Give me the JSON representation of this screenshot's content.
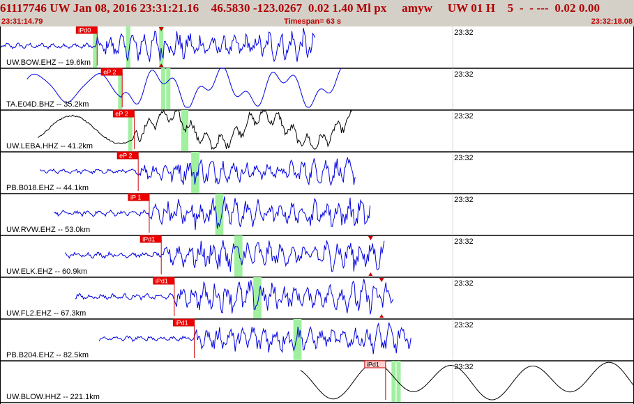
{
  "header": {
    "title": "61117746 UW Jan 08, 2016 23:31:21.16    46.5830 -123.0267  0.02 1.40 Ml px     amyw     UW 01 H    5  -  - ---  0.02 0.00",
    "start_time": "23:31:14.79",
    "timespan": "Timespan=  63 s",
    "end_time": "23:32:18.08"
  },
  "minute_mark": "23:32",
  "colors": {
    "header_bg": "#d4d0c8",
    "header_text": "#b00000",
    "trace_blue": "#0000e0",
    "trace_black": "#000000",
    "pick_box": "#ee0000",
    "pick_box_light": "#ffd0d0",
    "pick_line": "#cc0000",
    "window_green": "#a0f0a0"
  },
  "traces": [
    {
      "label": "UW.BOW.EHZ -- 19.6km",
      "color": "blue",
      "phase": "iPd0",
      "pick_sec": 9.7,
      "window_sec": [
        9.5,
        12.8,
        16.1
      ],
      "trace_sec": [
        0.0,
        31.5
      ],
      "amp": 22,
      "markers_sec": [
        16.1
      ],
      "style": "eq"
    },
    {
      "label": "TA.E04D.BHZ -- 35.2km",
      "color": "blue",
      "phase": "eP 2",
      "pick_sec": 12.2,
      "window_sec": [
        12.0,
        16.8,
        16.3
      ],
      "trace_sec": [
        2.7,
        34.1
      ],
      "amp": 24,
      "markers_sec": [],
      "style": "lp"
    },
    {
      "label": "UW.LEBA.HHZ -- 41.2km",
      "color": "black",
      "phase": "eP 2",
      "pick_sec": 13.4,
      "window_sec": [
        13.0,
        18.6,
        18.3
      ],
      "trace_sec": [
        3.8,
        35.2
      ],
      "amp": 22,
      "markers_sec": [],
      "style": "lpeq"
    },
    {
      "label": "PB.B018.EHZ -- 44.1km",
      "color": "blue",
      "phase": "eP 2",
      "pick_sec": 13.8,
      "window_sec": [
        19.3,
        19.7
      ],
      "trace_sec": [
        4.0,
        35.6
      ],
      "amp": 18,
      "markers_sec": [],
      "style": "eq"
    },
    {
      "label": "UW.RVW.EHZ -- 53.0km",
      "color": "blue",
      "phase": "iP 1",
      "pick_sec": 14.9,
      "window_sec": [
        21.7,
        22.1
      ],
      "trace_sec": [
        5.4,
        37.0
      ],
      "amp": 22,
      "markers_sec": [],
      "style": "eq"
    },
    {
      "label": "UW.ELK.EHZ -- 60.9km",
      "color": "blue",
      "phase": "iPd1",
      "pick_sec": 16.1,
      "window_sec": [
        23.6,
        24.0
      ],
      "trace_sec": [
        6.5,
        38.4
      ],
      "amp": 22,
      "markers_sec": [
        37.0
      ],
      "style": "eq"
    },
    {
      "label": "UW.FL2.EHZ -- 67.3km",
      "color": "blue",
      "phase": "iPd1",
      "pick_sec": 17.4,
      "window_sec": [
        25.5,
        25.9
      ],
      "trace_sec": [
        7.5,
        39.3
      ],
      "amp": 22,
      "markers_sec": [
        38.1
      ],
      "style": "eq"
    },
    {
      "label": "PB.B204.EHZ -- 82.5km",
      "color": "blue",
      "phase": "iPd1",
      "pick_sec": 19.4,
      "window_sec": [
        29.5,
        29.9
      ],
      "trace_sec": [
        9.9,
        41.1
      ],
      "amp": 20,
      "markers_sec": [],
      "style": "eq"
    },
    {
      "label": "UW.BLOW.HHZ -- 221.1km",
      "color": "black",
      "phase": "iPd1",
      "pick_sec": 38.5,
      "window_sec": [
        39.3,
        39.8
      ],
      "trace_sec": [
        30.0,
        63.3
      ],
      "amp": 22,
      "markers_sec": [],
      "style": "lp2"
    }
  ]
}
